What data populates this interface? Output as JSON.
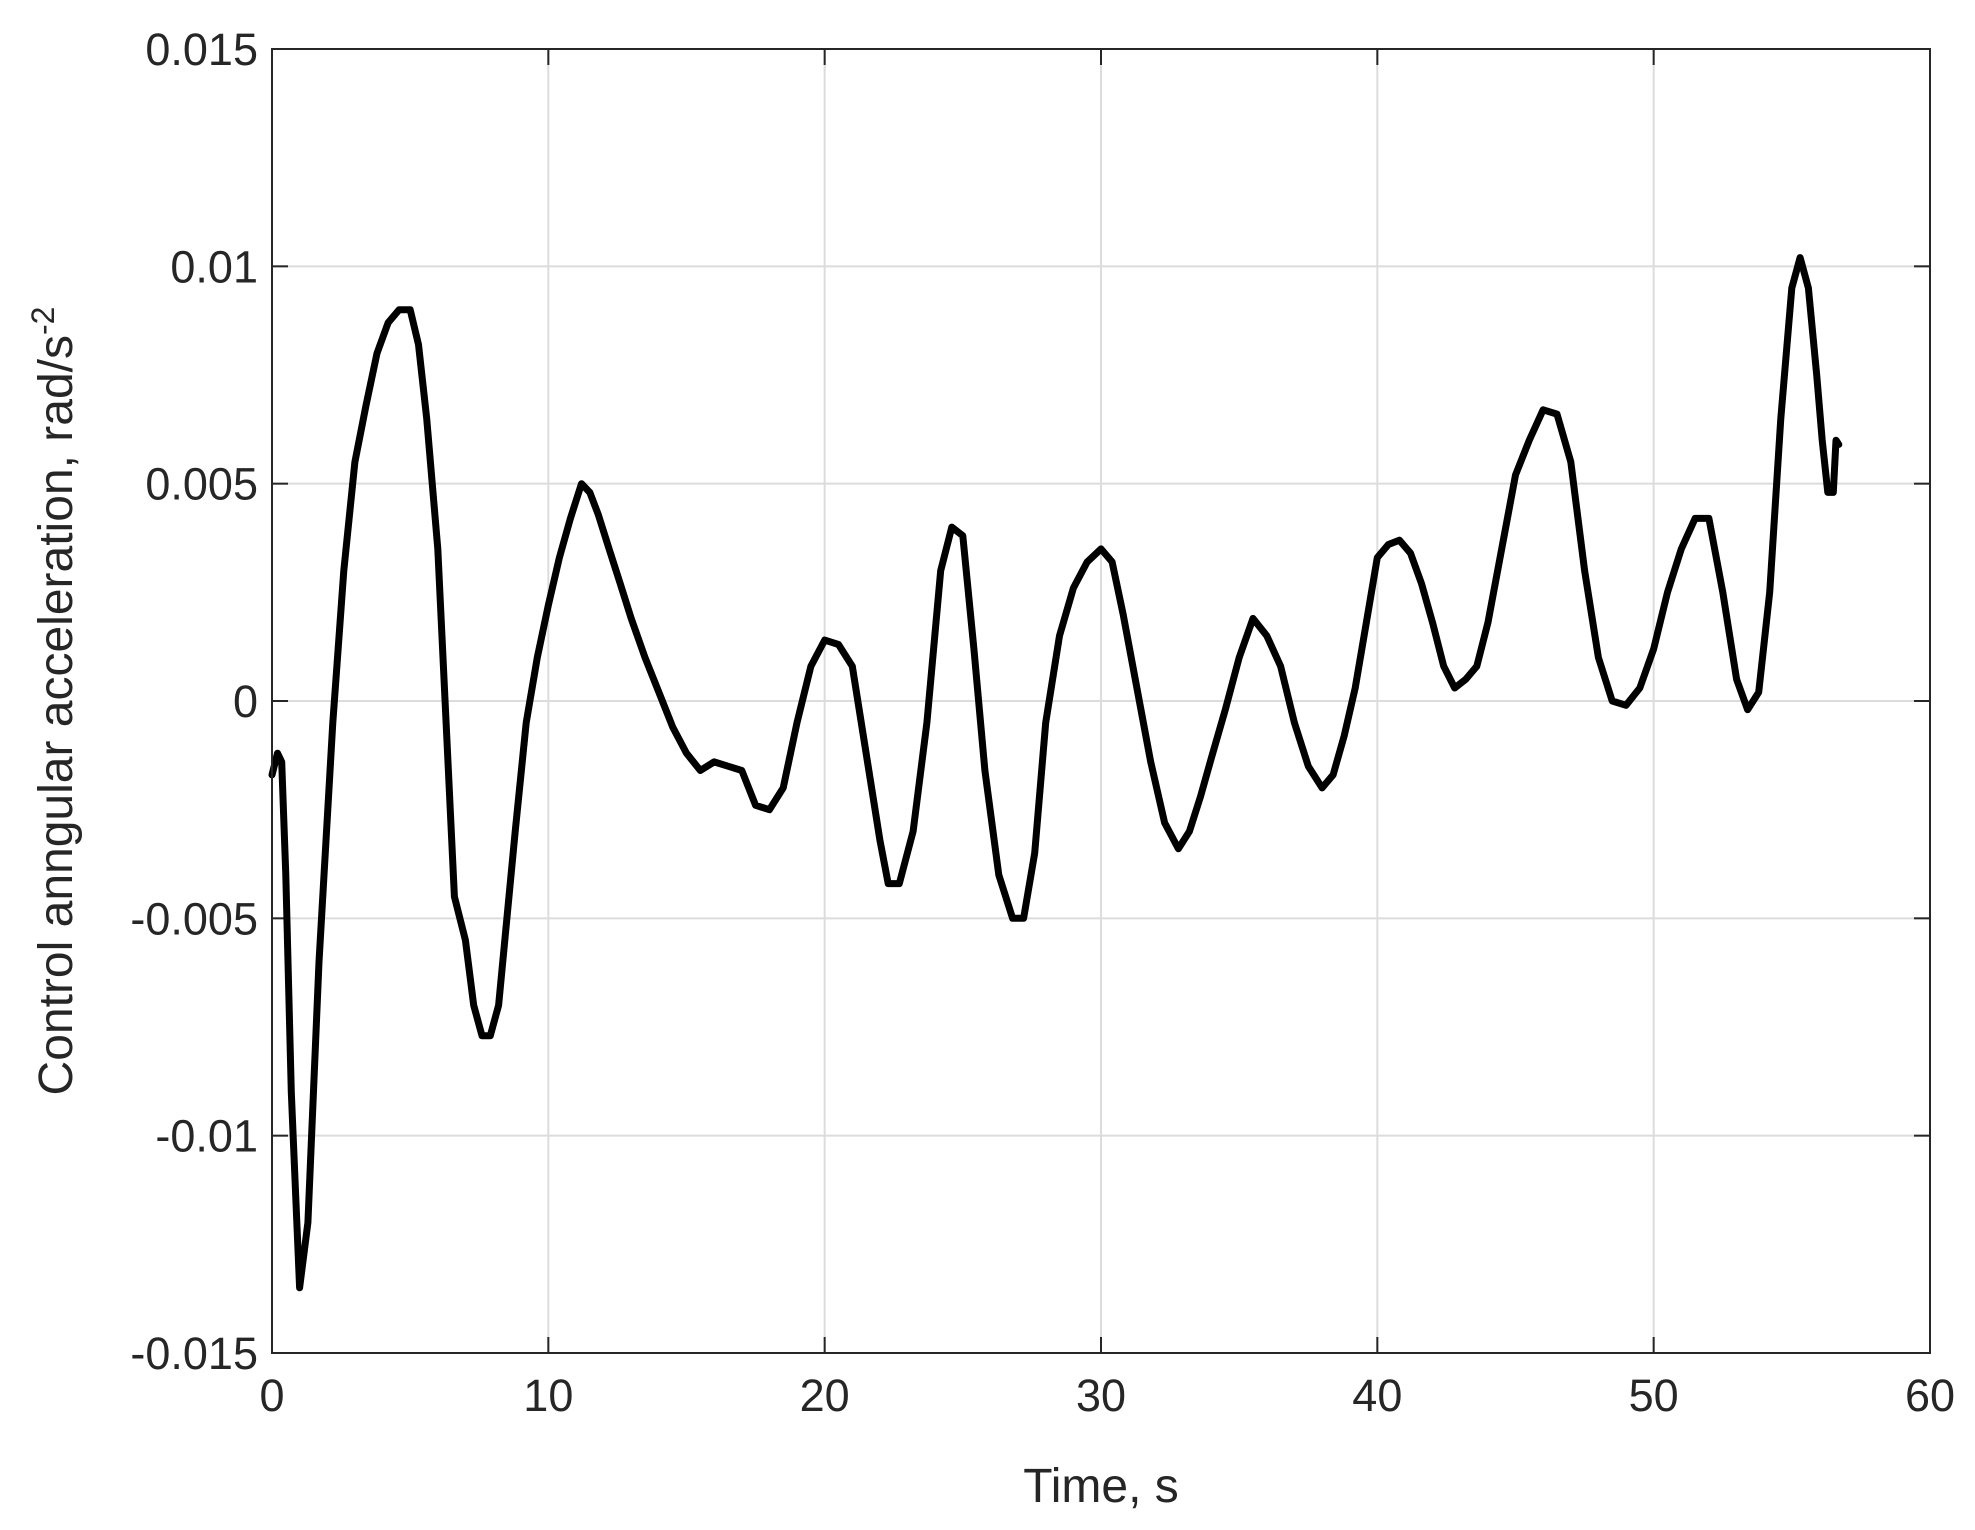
{
  "chart_data": {
    "type": "line",
    "title": "",
    "xlabel": "Time, s",
    "ylabel_main": "Control anngular acceleration, rad/s",
    "ylabel_superscript": "-2",
    "xlim": [
      0,
      60
    ],
    "ylim": [
      -0.015,
      0.015
    ],
    "grid": true,
    "x_ticks": [
      0,
      10,
      20,
      30,
      40,
      50,
      60
    ],
    "x_tick_labels": [
      "0",
      "10",
      "20",
      "30",
      "40",
      "50",
      "60"
    ],
    "y_ticks": [
      -0.015,
      -0.01,
      -0.005,
      0,
      0.005,
      0.01,
      0.015
    ],
    "y_tick_labels": [
      "-0.015",
      "-0.01",
      "-0.005",
      "0",
      "0.005",
      "0.01",
      "0.015"
    ],
    "line_color": "#000000",
    "grid_color": "#dcdcdc",
    "series": [
      {
        "x": [
          0,
          0.2,
          0.35,
          0.5,
          0.7,
          1.0,
          1.3,
          1.7,
          2.2,
          2.6,
          3.0,
          3.4,
          3.8,
          4.2,
          4.6,
          5.0,
          5.3,
          5.6,
          6.0,
          6.3,
          6.6,
          7.0,
          7.3,
          7.6,
          7.9,
          8.2,
          8.5,
          8.8,
          9.2,
          9.6,
          10.0,
          10.4,
          10.8,
          11.2,
          11.5,
          11.8,
          12.2,
          12.6,
          13.0,
          13.5,
          14.0,
          14.5,
          15.0,
          15.5,
          16.0,
          16.5,
          17.0,
          17.5,
          18.0,
          18.5,
          19.0,
          19.5,
          20.0,
          20.5,
          21.0,
          21.5,
          22.0,
          22.3,
          22.7,
          23.2,
          23.7,
          24.2,
          24.6,
          25.0,
          25.4,
          25.8,
          26.3,
          26.8,
          27.2,
          27.6,
          28.0,
          28.5,
          29.0,
          29.5,
          30.0,
          30.4,
          30.8,
          31.3,
          31.8,
          32.3,
          32.8,
          33.2,
          33.6,
          34.0,
          34.5,
          35.0,
          35.5,
          36.0,
          36.5,
          37.0,
          37.5,
          38.0,
          38.4,
          38.8,
          39.2,
          39.6,
          40.0,
          40.4,
          40.8,
          41.2,
          41.6,
          42.0,
          42.4,
          42.8,
          43.2,
          43.6,
          44.0,
          44.5,
          45.0,
          45.5,
          46.0,
          46.5,
          47.0,
          47.5,
          48.0,
          48.5,
          49.0,
          49.5,
          50.0,
          50.5,
          51.0,
          51.5,
          52.0,
          52.5,
          53.0,
          53.4,
          53.8,
          54.2,
          54.6,
          55.0,
          55.3,
          55.6,
          55.9,
          56.1,
          56.3,
          56.5,
          56.6,
          56.7
        ],
        "y": [
          -0.0017,
          -0.0012,
          -0.0014,
          -0.004,
          -0.009,
          -0.0135,
          -0.012,
          -0.006,
          -0.0005,
          0.003,
          0.0055,
          0.0068,
          0.008,
          0.0087,
          0.009,
          0.009,
          0.0082,
          0.0065,
          0.0035,
          -0.0005,
          -0.0045,
          -0.0055,
          -0.007,
          -0.0077,
          -0.0077,
          -0.007,
          -0.005,
          -0.003,
          -0.0005,
          0.001,
          0.0022,
          0.0033,
          0.0042,
          0.005,
          0.0048,
          0.0043,
          0.0035,
          0.0027,
          0.0019,
          0.001,
          0.0002,
          -0.0006,
          -0.0012,
          -0.0016,
          -0.0014,
          -0.0015,
          -0.0016,
          -0.0024,
          -0.0025,
          -0.002,
          -0.0005,
          0.0008,
          0.0014,
          0.0013,
          0.0008,
          -0.0012,
          -0.0032,
          -0.0042,
          -0.0042,
          -0.003,
          -0.0005,
          0.003,
          0.004,
          0.0038,
          0.0012,
          -0.0016,
          -0.004,
          -0.005,
          -0.005,
          -0.0035,
          -0.0005,
          0.0015,
          0.0026,
          0.0032,
          0.0035,
          0.0032,
          0.002,
          0.0003,
          -0.0014,
          -0.0028,
          -0.0034,
          -0.003,
          -0.0022,
          -0.0013,
          -0.0002,
          0.001,
          0.0019,
          0.0015,
          0.0008,
          -0.0005,
          -0.0015,
          -0.002,
          -0.0017,
          -0.0008,
          0.0003,
          0.0018,
          0.0033,
          0.0036,
          0.0037,
          0.0034,
          0.0027,
          0.0018,
          0.0008,
          0.0003,
          0.0005,
          0.0008,
          0.0018,
          0.0035,
          0.0052,
          0.006,
          0.0067,
          0.0066,
          0.0055,
          0.003,
          0.001,
          0.0,
          -0.0001,
          0.0003,
          0.0012,
          0.0025,
          0.0035,
          0.0042,
          0.0042,
          0.0025,
          0.0005,
          -0.0002,
          0.0002,
          0.0025,
          0.0065,
          0.0095,
          0.0102,
          0.0095,
          0.0075,
          0.006,
          0.0048,
          0.0048,
          0.006,
          0.0059
        ]
      }
    ]
  }
}
